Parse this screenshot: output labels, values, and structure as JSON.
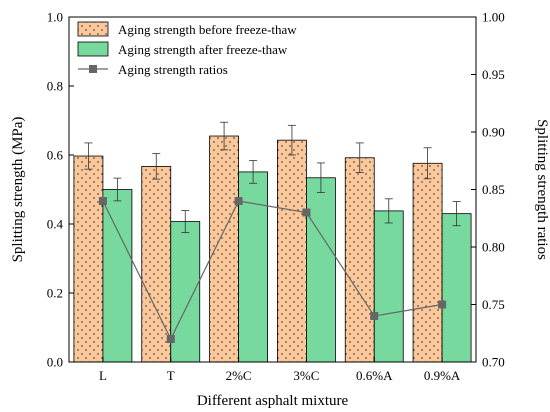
{
  "chart_data": {
    "type": "bar",
    "title": "",
    "xlabel": "Different asphalt mixture",
    "ylabel": "Splitting strength (MPa)",
    "y2label": "Splitting strength ratios",
    "categories": [
      "L",
      "T",
      "2%C",
      "3%C",
      "0.6%A",
      "0.9%A"
    ],
    "ylim": [
      0,
      1.0
    ],
    "yticks": [
      "0.0",
      "0.2",
      "0.4",
      "0.6",
      "0.8",
      "1.0"
    ],
    "y2lim": [
      0.7,
      1.0
    ],
    "y2ticks": [
      "0.70",
      "0.75",
      "0.80",
      "0.85",
      "0.90",
      "0.95",
      "1.00"
    ],
    "legend_position": "top-left",
    "series": [
      {
        "name": "Aging strength before freeze-thaw",
        "kind": "bar",
        "axis": "left",
        "values": [
          0.597,
          0.567,
          0.655,
          0.643,
          0.592,
          0.576
        ],
        "errors": [
          0.038,
          0.037,
          0.04,
          0.043,
          0.043,
          0.045
        ],
        "color": "#fcc89a",
        "pattern": "dots"
      },
      {
        "name": "Aging strength after freeze-thaw",
        "kind": "bar",
        "axis": "left",
        "values": [
          0.5,
          0.407,
          0.551,
          0.534,
          0.438,
          0.43
        ],
        "errors": [
          0.033,
          0.032,
          0.033,
          0.043,
          0.035,
          0.035
        ],
        "color": "#77d99e",
        "pattern": "none"
      },
      {
        "name": "Aging strength ratios",
        "kind": "line",
        "axis": "right",
        "values": [
          0.84,
          0.72,
          0.84,
          0.83,
          0.74,
          0.75
        ],
        "color": "#666666"
      }
    ]
  }
}
